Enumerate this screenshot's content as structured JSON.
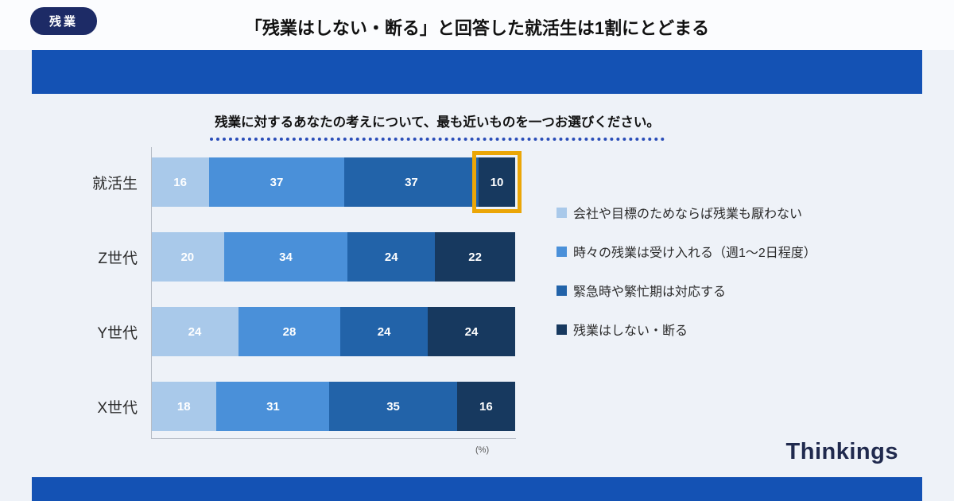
{
  "page": {
    "badge": "残業",
    "title": "「残業はしない・断る」と回答した就活生は1割にとどまる",
    "subtitle": "残業に対するあなたの考えについて、最も近いものを一つお選びください。",
    "unit_label": "(%)",
    "logo": "Thinkings"
  },
  "colors": {
    "band_blue": "#1452b4",
    "badge_navy": "#1d2b66",
    "highlight_orange": "#eba607",
    "segment_colors": [
      "#a9c9ea",
      "#4a90d9",
      "#2263a9",
      "#17395f"
    ]
  },
  "chart_data": {
    "type": "bar",
    "stacked": true,
    "orientation": "horizontal",
    "title": "残業に対するあなたの考えについて、最も近いものを一つお選びください。",
    "categories": [
      "就活生",
      "Z世代",
      "Y世代",
      "X世代"
    ],
    "series": [
      {
        "name": "会社や目標のためならば残業も厭わない",
        "color": "#a9c9ea",
        "values": [
          16,
          20,
          24,
          18
        ]
      },
      {
        "name": "時々の残業は受け入れる（週1〜2日程度）",
        "color": "#4a90d9",
        "values": [
          37,
          34,
          28,
          31
        ]
      },
      {
        "name": "緊急時や繁忙期は対応する",
        "color": "#2263a9",
        "values": [
          37,
          24,
          24,
          35
        ]
      },
      {
        "name": "残業はしない・断る",
        "color": "#17395f",
        "values": [
          10,
          22,
          24,
          16
        ]
      }
    ],
    "highlight": {
      "category": "就活生",
      "series": "残業はしない・断る",
      "value": 10
    },
    "xlim": [
      0,
      100
    ],
    "unit": "%",
    "legend_position": "right",
    "grid": false
  }
}
